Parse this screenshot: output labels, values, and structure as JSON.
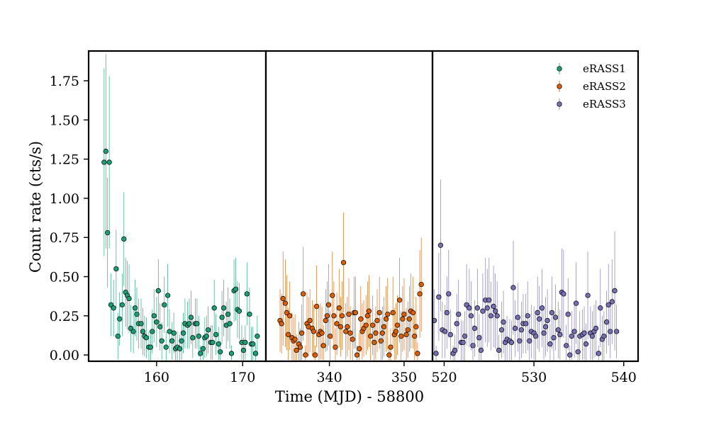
{
  "chart_data": {
    "type": "scatter",
    "title": "",
    "xlabel": "Time (MJD) - 58800",
    "ylabel": "Count rate (cts/s)",
    "ylim": [
      -0.04,
      1.94
    ],
    "yticks": [
      0.0,
      0.25,
      0.5,
      0.75,
      1.0,
      1.25,
      1.5,
      1.75
    ],
    "ytick_labels": [
      "0.00",
      "0.25",
      "0.50",
      "0.75",
      "1.00",
      "1.25",
      "1.50",
      "1.75"
    ],
    "grid": false,
    "legend_position": "top-right",
    "panels": [
      {
        "series": "eRASS1",
        "xlim": [
          152.1,
          172.7
        ],
        "xticks": [
          160,
          170
        ],
        "xtick_labels": [
          "160",
          "170"
        ]
      },
      {
        "series": "eRASS2",
        "xlim": [
          331.5,
          353.8
        ],
        "xticks": [
          340,
          350
        ],
        "xtick_labels": [
          "340",
          "350"
        ]
      },
      {
        "series": "eRASS3",
        "xlim": [
          518.7,
          541.6
        ],
        "xticks": [
          520,
          530,
          540
        ],
        "xtick_labels": [
          "520",
          "530",
          "540"
        ]
      }
    ],
    "series": [
      {
        "name": "eRASS1",
        "color": "#1b9e77",
        "x": [
          153.9,
          154.1,
          154.3,
          154.5,
          154.7,
          155.0,
          155.3,
          155.5,
          155.7,
          156.0,
          156.2,
          156.4,
          156.6,
          156.8,
          157.0,
          157.3,
          157.5,
          157.7,
          157.9,
          158.2,
          158.4,
          158.6,
          158.8,
          159.1,
          159.3,
          159.5,
          159.7,
          160.0,
          160.2,
          160.4,
          160.6,
          160.9,
          161.1,
          161.3,
          161.5,
          161.8,
          162.0,
          162.2,
          162.4,
          162.7,
          162.9,
          163.1,
          163.3,
          163.6,
          163.8,
          164.0,
          164.2,
          164.5,
          164.7,
          164.9,
          165.1,
          165.4,
          165.6,
          165.8,
          166.0,
          166.3,
          166.5,
          166.7,
          166.9,
          167.2,
          167.4,
          167.6,
          167.8,
          168.1,
          168.3,
          168.5,
          168.7,
          169.0,
          169.2,
          169.4,
          169.6,
          169.9,
          170.1,
          170.3,
          170.5,
          170.8,
          171.0,
          171.2,
          171.5,
          171.7
        ],
        "y": [
          1.23,
          1.3,
          0.78,
          1.23,
          0.32,
          0.3,
          0.55,
          0.12,
          0.23,
          0.32,
          0.74,
          0.4,
          0.38,
          0.36,
          0.17,
          0.15,
          0.3,
          0.26,
          0.2,
          0.2,
          0.15,
          0.12,
          0.11,
          0.05,
          0.05,
          0.15,
          0.25,
          0.21,
          0.41,
          0.18,
          0.09,
          0.32,
          0.05,
          0.38,
          0.15,
          0.09,
          0.14,
          0.04,
          0.05,
          0.04,
          0.09,
          0.14,
          0.2,
          0.19,
          0.2,
          0.24,
          0.11,
          0.2,
          0.2,
          0.12,
          0.01,
          0.04,
          0.11,
          0.12,
          0.16,
          0.08,
          0.08,
          0.3,
          0.13,
          0.07,
          0.02,
          0.24,
          0.3,
          0.19,
          0.26,
          0.2,
          0.01,
          0.41,
          0.42,
          0.29,
          0.28,
          0.08,
          0.03,
          0.08,
          0.39,
          0.26,
          0.07,
          0.07,
          0.01,
          0.12
        ],
        "yerr": [
          0.6,
          0.62,
          0.35,
          0.55,
          0.2,
          0.18,
          0.25,
          0.15,
          0.17,
          0.2,
          0.3,
          0.22,
          0.22,
          0.22,
          0.15,
          0.14,
          0.18,
          0.17,
          0.16,
          0.16,
          0.15,
          0.13,
          0.13,
          0.1,
          0.1,
          0.14,
          0.17,
          0.16,
          0.2,
          0.15,
          0.12,
          0.18,
          0.1,
          0.2,
          0.14,
          0.12,
          0.13,
          0.09,
          0.1,
          0.09,
          0.12,
          0.13,
          0.16,
          0.15,
          0.16,
          0.17,
          0.13,
          0.16,
          0.16,
          0.13,
          0.05,
          0.09,
          0.13,
          0.13,
          0.15,
          0.11,
          0.11,
          0.18,
          0.13,
          0.11,
          0.07,
          0.17,
          0.18,
          0.15,
          0.17,
          0.16,
          0.05,
          0.2,
          0.2,
          0.18,
          0.18,
          0.11,
          0.08,
          0.11,
          0.2,
          0.17,
          0.11,
          0.11,
          0.05,
          0.13
        ]
      },
      {
        "name": "eRASS2",
        "color": "#d95f02",
        "x": [
          333.4,
          333.6,
          333.8,
          334.1,
          334.3,
          334.5,
          334.7,
          335.0,
          335.2,
          335.4,
          335.6,
          335.9,
          336.1,
          336.3,
          336.5,
          336.8,
          337.0,
          337.2,
          337.4,
          337.7,
          337.9,
          338.1,
          338.3,
          338.6,
          338.8,
          339.0,
          339.2,
          339.5,
          339.7,
          339.9,
          340.1,
          340.4,
          340.6,
          340.8,
          341.0,
          341.3,
          341.5,
          341.7,
          341.9,
          342.2,
          342.4,
          342.6,
          342.8,
          343.1,
          343.3,
          343.5,
          343.7,
          344.0,
          344.2,
          344.4,
          344.6,
          344.9,
          345.1,
          345.3,
          345.5,
          345.8,
          346.0,
          346.2,
          346.4,
          346.7,
          346.9,
          347.1,
          347.3,
          347.6,
          347.8,
          348.0,
          348.2,
          348.5,
          348.7,
          348.9,
          349.1,
          349.4,
          349.6,
          349.8,
          350.0,
          350.3,
          350.5,
          350.7,
          350.9,
          351.2,
          351.4,
          351.6,
          351.8,
          352.1,
          352.3
        ],
        "y": [
          0.22,
          0.2,
          0.36,
          0.33,
          0.27,
          0.13,
          0.25,
          0.11,
          0.09,
          0.1,
          0.03,
          0.07,
          0.05,
          0.14,
          0.39,
          0.0,
          0.2,
          0.18,
          0.22,
          0.17,
          0.15,
          0.0,
          0.31,
          0.13,
          0.15,
          0.14,
          0.06,
          0.22,
          0.25,
          0.32,
          0.12,
          0.38,
          0.25,
          0.05,
          0.2,
          0.3,
          0.18,
          0.25,
          0.59,
          0.15,
          0.18,
          0.26,
          0.14,
          0.1,
          0.27,
          0.27,
          0.0,
          0.04,
          0.23,
          0.15,
          0.17,
          0.19,
          0.25,
          0.28,
          0.12,
          0.19,
          0.08,
          0.14,
          0.22,
          0.27,
          0.09,
          0.14,
          0.18,
          0.23,
          0.26,
          0.0,
          0.05,
          0.27,
          0.13,
          0.15,
          0.19,
          0.35,
          0.12,
          0.23,
          0.26,
          0.13,
          0.16,
          0.23,
          0.28,
          0.27,
          0.12,
          0.18,
          0.01,
          0.39,
          0.45
        ],
        "yerr": [
          0.2,
          0.19,
          0.3,
          0.28,
          0.24,
          0.17,
          0.22,
          0.16,
          0.15,
          0.16,
          0.1,
          0.14,
          0.12,
          0.18,
          0.3,
          0.06,
          0.2,
          0.19,
          0.2,
          0.18,
          0.17,
          0.06,
          0.26,
          0.17,
          0.18,
          0.17,
          0.13,
          0.2,
          0.22,
          0.26,
          0.16,
          0.28,
          0.22,
          0.12,
          0.2,
          0.25,
          0.19,
          0.22,
          0.32,
          0.18,
          0.19,
          0.23,
          0.17,
          0.16,
          0.23,
          0.23,
          0.06,
          0.1,
          0.21,
          0.18,
          0.18,
          0.19,
          0.22,
          0.23,
          0.16,
          0.19,
          0.14,
          0.17,
          0.2,
          0.23,
          0.15,
          0.17,
          0.19,
          0.21,
          0.23,
          0.06,
          0.12,
          0.23,
          0.17,
          0.18,
          0.19,
          0.27,
          0.16,
          0.21,
          0.23,
          0.17,
          0.18,
          0.21,
          0.24,
          0.23,
          0.16,
          0.19,
          0.07,
          0.28,
          0.3
        ]
      },
      {
        "name": "eRASS3",
        "color": "#7570b3",
        "x": [
          518.9,
          519.1,
          519.4,
          519.6,
          519.8,
          520.1,
          520.3,
          520.5,
          520.7,
          521.0,
          521.2,
          521.4,
          521.6,
          521.9,
          522.1,
          522.3,
          522.5,
          522.8,
          523.0,
          523.2,
          523.4,
          523.7,
          523.9,
          524.1,
          524.3,
          524.6,
          524.8,
          525.0,
          525.2,
          525.5,
          525.7,
          525.9,
          526.1,
          526.4,
          526.6,
          526.8,
          527.0,
          527.3,
          527.5,
          527.7,
          527.9,
          528.2,
          528.4,
          528.6,
          528.8,
          529.1,
          529.3,
          529.5,
          529.7,
          530.0,
          530.2,
          530.4,
          530.6,
          530.9,
          531.1,
          531.3,
          531.5,
          531.8,
          532.0,
          532.2,
          532.4,
          532.7,
          532.9,
          533.1,
          533.3,
          533.6,
          533.8,
          534.0,
          534.2,
          534.5,
          534.7,
          534.9,
          535.1,
          535.4,
          535.6,
          535.8,
          536.0,
          536.3,
          536.5,
          536.7,
          536.9,
          537.2,
          537.4,
          537.6,
          537.8,
          538.1,
          538.3,
          538.5,
          538.7,
          539.0,
          539.2
        ],
        "y": [
          0.22,
          0.01,
          0.37,
          0.7,
          0.16,
          0.15,
          0.27,
          0.39,
          0.13,
          0.01,
          0.03,
          0.2,
          0.26,
          0.08,
          0.08,
          0.12,
          0.32,
          0.3,
          0.25,
          0.06,
          0.17,
          0.3,
          0.11,
          0.03,
          0.28,
          0.35,
          0.3,
          0.35,
          0.25,
          0.31,
          0.28,
          0.25,
          0.03,
          0.16,
          0.21,
          0.08,
          0.1,
          0.09,
          0.08,
          0.43,
          0.17,
          0.24,
          0.09,
          0.16,
          0.2,
          0.2,
          0.25,
          0.09,
          0.15,
          0.14,
          0.12,
          0.27,
          0.23,
          0.3,
          0.14,
          0.18,
          0.22,
          0.07,
          0.27,
          0.11,
          0.24,
          0.16,
          0.13,
          0.4,
          0.39,
          0.06,
          0.26,
          0.0,
          0.12,
          0.15,
          0.33,
          0.02,
          0.12,
          0.13,
          0.14,
          0.07,
          0.38,
          0.14,
          0.12,
          0.15,
          0.17,
          0.01,
          0.3,
          0.1,
          0.12,
          0.21,
          0.32,
          0.15,
          0.34,
          0.41,
          0.15
        ],
        "yerr": [
          0.2,
          0.05,
          0.28,
          0.42,
          0.18,
          0.17,
          0.23,
          0.28,
          0.16,
          0.05,
          0.1,
          0.19,
          0.22,
          0.14,
          0.14,
          0.16,
          0.26,
          0.25,
          0.22,
          0.13,
          0.18,
          0.25,
          0.15,
          0.1,
          0.24,
          0.27,
          0.25,
          0.27,
          0.22,
          0.26,
          0.24,
          0.22,
          0.1,
          0.18,
          0.2,
          0.14,
          0.15,
          0.14,
          0.14,
          0.3,
          0.18,
          0.22,
          0.14,
          0.18,
          0.19,
          0.19,
          0.22,
          0.14,
          0.17,
          0.17,
          0.16,
          0.23,
          0.21,
          0.25,
          0.17,
          0.19,
          0.2,
          0.13,
          0.23,
          0.15,
          0.21,
          0.18,
          0.16,
          0.28,
          0.28,
          0.13,
          0.23,
          0.06,
          0.16,
          0.17,
          0.26,
          0.08,
          0.16,
          0.16,
          0.17,
          0.13,
          0.28,
          0.17,
          0.16,
          0.17,
          0.18,
          0.05,
          0.25,
          0.15,
          0.16,
          0.2,
          0.26,
          0.17,
          0.27,
          0.38,
          0.17
        ]
      }
    ]
  }
}
